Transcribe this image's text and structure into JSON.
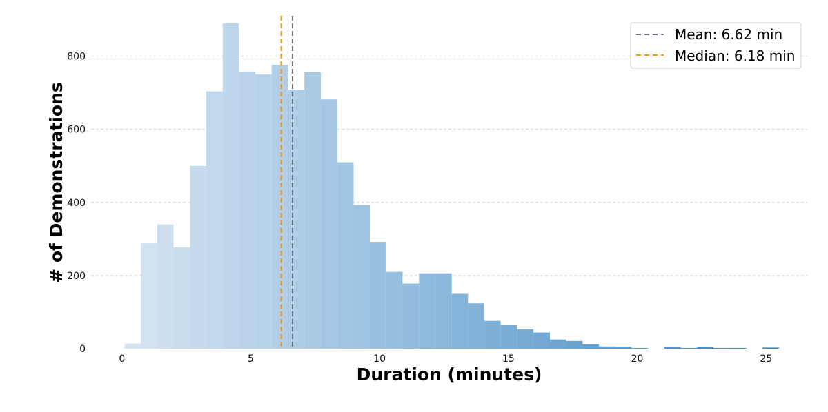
{
  "chart_data": {
    "type": "bar",
    "subtype": "histogram",
    "xlabel": "Duration (minutes)",
    "ylabel": "# of Demonstrations",
    "xlim": [
      -1.2,
      26.6
    ],
    "ylim": [
      0,
      935
    ],
    "xticks": [
      "0",
      "5",
      "10",
      "15",
      "20",
      "25"
    ],
    "yticks": [
      "0",
      "200",
      "400",
      "600",
      "800"
    ],
    "grid": "horizontal-dashed",
    "legend_position": "top-right",
    "bins": [
      {
        "x0": 0.1,
        "x1": 0.73,
        "count": 14
      },
      {
        "x0": 0.73,
        "x1": 1.37,
        "count": 290
      },
      {
        "x0": 1.37,
        "x1": 2.0,
        "count": 340
      },
      {
        "x0": 2.0,
        "x1": 2.64,
        "count": 277
      },
      {
        "x0": 2.64,
        "x1": 3.27,
        "count": 500
      },
      {
        "x0": 3.27,
        "x1": 3.91,
        "count": 704
      },
      {
        "x0": 3.91,
        "x1": 4.54,
        "count": 890
      },
      {
        "x0": 4.54,
        "x1": 5.18,
        "count": 758
      },
      {
        "x0": 5.18,
        "x1": 5.81,
        "count": 750
      },
      {
        "x0": 5.81,
        "x1": 6.45,
        "count": 776
      },
      {
        "x0": 6.45,
        "x1": 7.08,
        "count": 708
      },
      {
        "x0": 7.08,
        "x1": 7.72,
        "count": 756
      },
      {
        "x0": 7.72,
        "x1": 8.35,
        "count": 682
      },
      {
        "x0": 8.35,
        "x1": 8.99,
        "count": 510
      },
      {
        "x0": 8.99,
        "x1": 9.62,
        "count": 393
      },
      {
        "x0": 9.62,
        "x1": 10.26,
        "count": 292
      },
      {
        "x0": 10.26,
        "x1": 10.89,
        "count": 210
      },
      {
        "x0": 10.89,
        "x1": 11.53,
        "count": 178
      },
      {
        "x0": 11.53,
        "x1": 12.16,
        "count": 206
      },
      {
        "x0": 12.16,
        "x1": 12.8,
        "count": 206
      },
      {
        "x0": 12.8,
        "x1": 13.43,
        "count": 150
      },
      {
        "x0": 13.43,
        "x1": 14.07,
        "count": 124
      },
      {
        "x0": 14.07,
        "x1": 14.7,
        "count": 76
      },
      {
        "x0": 14.7,
        "x1": 15.34,
        "count": 64
      },
      {
        "x0": 15.34,
        "x1": 15.97,
        "count": 53
      },
      {
        "x0": 15.97,
        "x1": 16.61,
        "count": 44
      },
      {
        "x0": 16.61,
        "x1": 17.24,
        "count": 25
      },
      {
        "x0": 17.24,
        "x1": 17.88,
        "count": 21
      },
      {
        "x0": 17.88,
        "x1": 18.51,
        "count": 12
      },
      {
        "x0": 18.51,
        "x1": 19.15,
        "count": 6
      },
      {
        "x0": 19.15,
        "x1": 19.78,
        "count": 5
      },
      {
        "x0": 19.78,
        "x1": 20.42,
        "count": 2
      },
      {
        "x0": 20.42,
        "x1": 21.05,
        "count": 0
      },
      {
        "x0": 21.05,
        "x1": 21.69,
        "count": 4
      },
      {
        "x0": 21.69,
        "x1": 22.32,
        "count": 2
      },
      {
        "x0": 22.32,
        "x1": 22.96,
        "count": 4
      },
      {
        "x0": 22.96,
        "x1": 23.59,
        "count": 2
      },
      {
        "x0": 23.59,
        "x1": 24.23,
        "count": 2
      },
      {
        "x0": 24.23,
        "x1": 24.86,
        "count": 0
      },
      {
        "x0": 24.86,
        "x1": 25.5,
        "count": 3
      }
    ],
    "color_gradient": [
      "#d6e4f2",
      "#3a87c2"
    ],
    "reference_lines": [
      {
        "name": "Mean: 6.62 min",
        "value": 6.62,
        "color": "#6b7280",
        "style": "dashed"
      },
      {
        "name": "Median: 6.18 min",
        "value": 6.18,
        "color": "#f39c12",
        "style": "dashed"
      }
    ]
  }
}
